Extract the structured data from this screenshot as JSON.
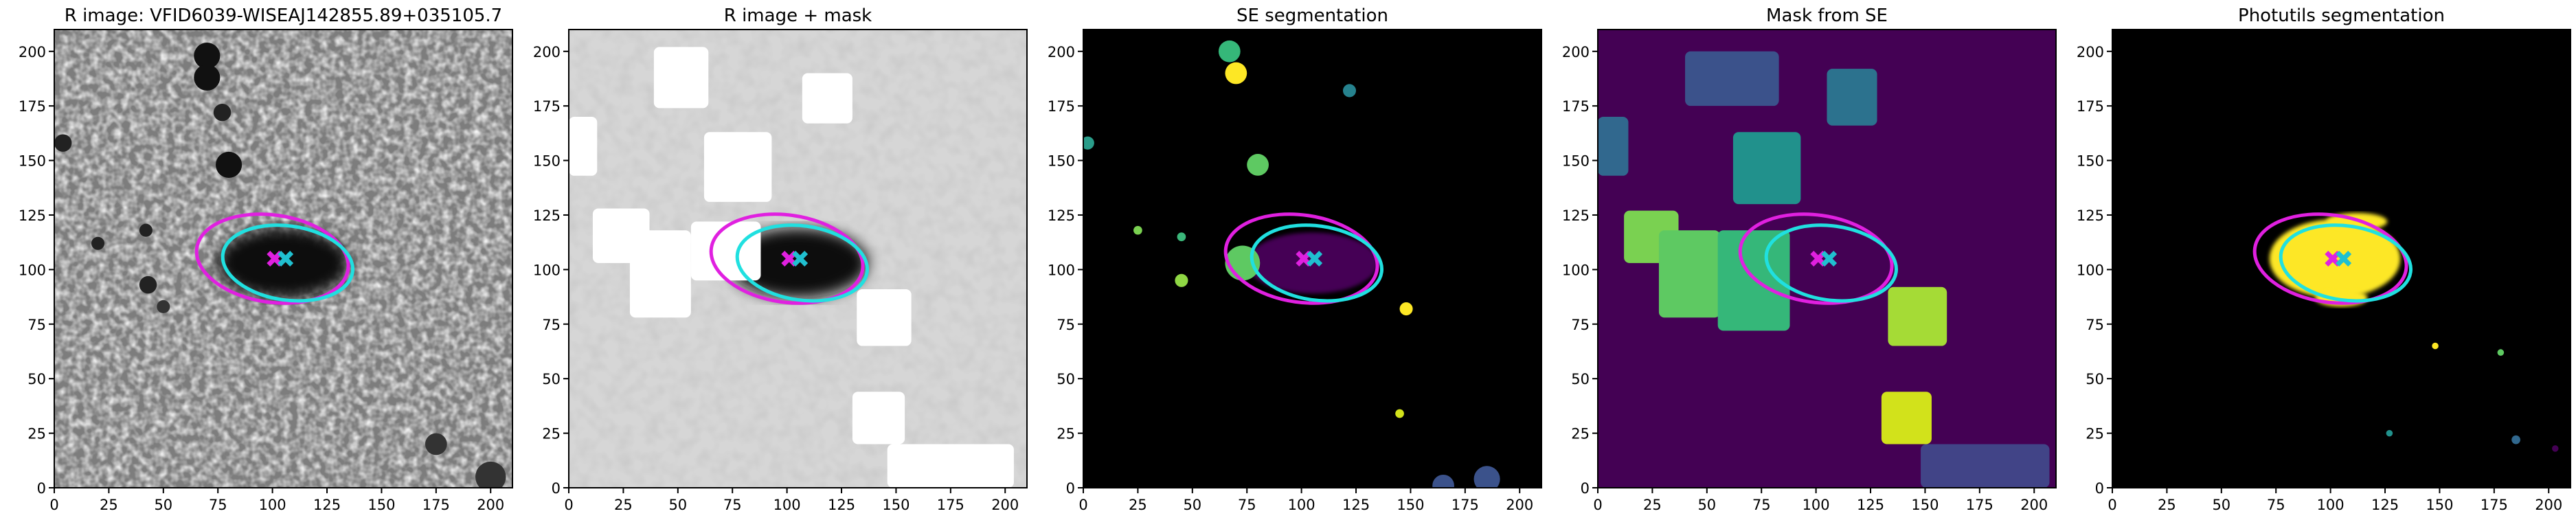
{
  "chart_data": [
    {
      "type": "image",
      "title": "R image: VFID6039-WISEAJ142855.89+035105.7",
      "background": "#7d7d7d",
      "xlim": [
        0,
        210
      ],
      "ylim": [
        0,
        210
      ],
      "xticks": [
        0,
        25,
        50,
        75,
        100,
        125,
        150,
        175,
        200
      ],
      "yticks": [
        0,
        25,
        50,
        75,
        100,
        125,
        150,
        175,
        200
      ],
      "ellipses": [
        {
          "color": "#e020e0",
          "x": 100,
          "y": 105,
          "a": 35,
          "b": 20,
          "angle": -8
        },
        {
          "color": "#20e0e0",
          "x": 107,
          "y": 103,
          "a": 30,
          "b": 17,
          "angle": -8
        }
      ],
      "markers": [
        {
          "color": "#e020e0",
          "x": 101,
          "y": 105
        },
        {
          "color": "#20c0d0",
          "x": 106,
          "y": 105
        }
      ]
    },
    {
      "type": "image",
      "title": "R image + mask",
      "background": "#d6d6d6",
      "xlim": [
        0,
        210
      ],
      "ylim": [
        0,
        210
      ],
      "xticks": [
        0,
        25,
        50,
        75,
        100,
        125,
        150,
        175,
        200
      ],
      "yticks": [
        0,
        25,
        50,
        75,
        100,
        125,
        150,
        175,
        200
      ],
      "ellipses": [
        {
          "color": "#e020e0",
          "x": 100,
          "y": 105,
          "a": 35,
          "b": 20,
          "angle": -8
        },
        {
          "color": "#20e0e0",
          "x": 107,
          "y": 103,
          "a": 30,
          "b": 17,
          "angle": -8
        }
      ],
      "markers": [
        {
          "color": "#e020e0",
          "x": 101,
          "y": 105
        },
        {
          "color": "#20c0d0",
          "x": 106,
          "y": 105
        }
      ]
    },
    {
      "type": "image",
      "title": "SE segmentation",
      "background": "#000000",
      "xlim": [
        0,
        210
      ],
      "ylim": [
        0,
        210
      ],
      "xticks": [
        0,
        25,
        50,
        75,
        100,
        125,
        150,
        175,
        200
      ],
      "yticks": [
        0,
        25,
        50,
        75,
        100,
        125,
        150,
        175,
        200
      ],
      "ellipses": [
        {
          "color": "#e020e0",
          "x": 100,
          "y": 105,
          "a": 35,
          "b": 20,
          "angle": -8
        },
        {
          "color": "#20e0e0",
          "x": 107,
          "y": 103,
          "a": 30,
          "b": 17,
          "angle": -8
        }
      ],
      "markers": [
        {
          "color": "#e020e0",
          "x": 101,
          "y": 105
        },
        {
          "color": "#20c0d0",
          "x": 106,
          "y": 105
        }
      ]
    },
    {
      "type": "image",
      "title": "Mask from SE",
      "background": "#440154",
      "xlim": [
        0,
        210
      ],
      "ylim": [
        0,
        210
      ],
      "xticks": [
        0,
        25,
        50,
        75,
        100,
        125,
        150,
        175,
        200
      ],
      "yticks": [
        0,
        25,
        50,
        75,
        100,
        125,
        150,
        175,
        200
      ],
      "ellipses": [
        {
          "color": "#e020e0",
          "x": 100,
          "y": 105,
          "a": 35,
          "b": 20,
          "angle": -8
        },
        {
          "color": "#20e0e0",
          "x": 107,
          "y": 103,
          "a": 30,
          "b": 17,
          "angle": -8
        }
      ],
      "markers": [
        {
          "color": "#e020e0",
          "x": 101,
          "y": 105
        },
        {
          "color": "#20c0d0",
          "x": 106,
          "y": 105
        }
      ]
    },
    {
      "type": "image",
      "title": "Photutils segmentation",
      "background": "#000000",
      "xlim": [
        0,
        210
      ],
      "ylim": [
        0,
        210
      ],
      "xticks": [
        0,
        25,
        50,
        75,
        100,
        125,
        150,
        175,
        200
      ],
      "yticks": [
        0,
        25,
        50,
        75,
        100,
        125,
        150,
        175,
        200
      ],
      "ellipses": [
        {
          "color": "#e020e0",
          "x": 100,
          "y": 105,
          "a": 35,
          "b": 20,
          "angle": -8
        },
        {
          "color": "#20e0e0",
          "x": 107,
          "y": 103,
          "a": 30,
          "b": 17,
          "angle": -8
        }
      ],
      "markers": [
        {
          "color": "#e020e0",
          "x": 101,
          "y": 105
        },
        {
          "color": "#20c0d0",
          "x": 106,
          "y": 105
        }
      ]
    }
  ]
}
